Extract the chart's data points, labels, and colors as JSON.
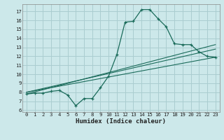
{
  "title": "",
  "xlabel": "Humidex (Indice chaleur)",
  "bg_color": "#cce8ea",
  "grid_color": "#aacdd0",
  "line_color": "#1a6b5a",
  "xlim": [
    -0.5,
    23.5
  ],
  "ylim": [
    5.8,
    17.8
  ],
  "xticks": [
    0,
    1,
    2,
    3,
    4,
    5,
    6,
    7,
    8,
    9,
    10,
    11,
    12,
    13,
    14,
    15,
    16,
    17,
    18,
    19,
    20,
    21,
    22,
    23
  ],
  "yticks": [
    6,
    7,
    8,
    9,
    10,
    11,
    12,
    13,
    14,
    15,
    16,
    17
  ],
  "curve_x": [
    0,
    1,
    2,
    3,
    4,
    5,
    6,
    7,
    8,
    9,
    10,
    11,
    12,
    13,
    14,
    15,
    16,
    17,
    18,
    19,
    20,
    21,
    22,
    23
  ],
  "curve_y": [
    7.8,
    7.9,
    7.9,
    8.1,
    8.2,
    7.7,
    6.5,
    7.3,
    7.3,
    8.5,
    9.8,
    12.2,
    15.8,
    15.9,
    17.2,
    17.2,
    16.2,
    15.3,
    13.4,
    13.3,
    13.3,
    12.5,
    12.0,
    11.9
  ],
  "line1_x": [
    0,
    23
  ],
  "line1_y": [
    8.0,
    11.9
  ],
  "line2_x": [
    0,
    23
  ],
  "line2_y": [
    8.0,
    12.8
  ],
  "line3_x": [
    0,
    23
  ],
  "line3_y": [
    7.8,
    13.3
  ],
  "xlabel_fontsize": 6.5,
  "tick_fontsize": 5.2
}
